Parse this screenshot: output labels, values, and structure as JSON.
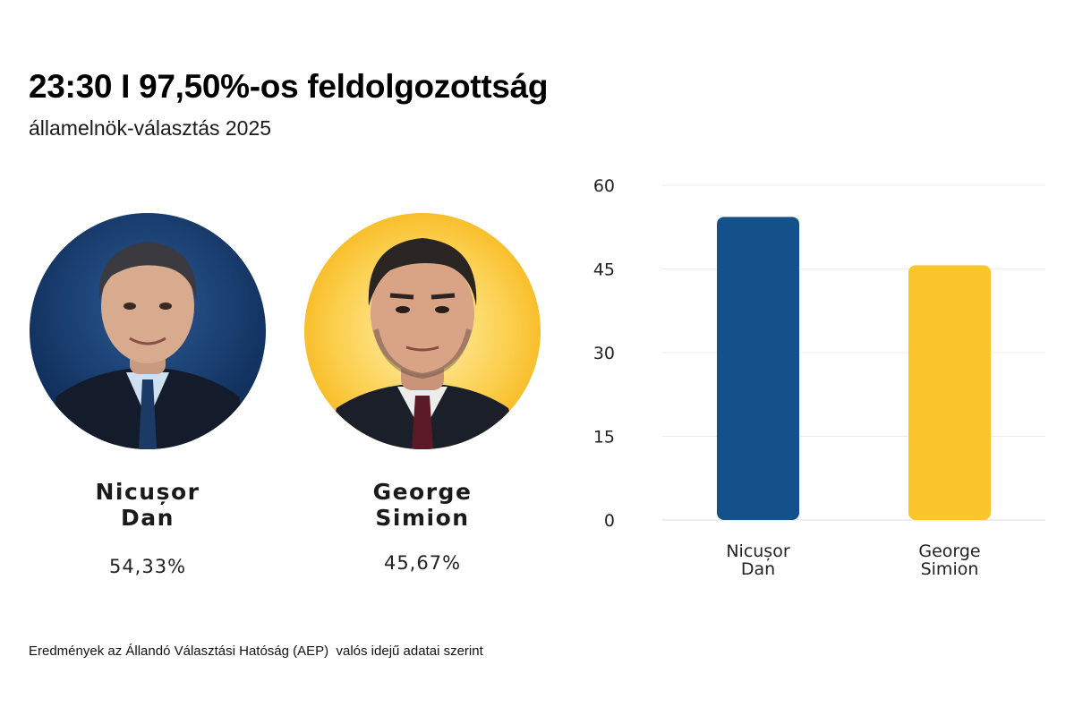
{
  "header": {
    "title": "23:30 I 97,50%-os feldolgozottság",
    "subtitle": "államelnök-választás 2025"
  },
  "candidates": [
    {
      "name_line1": "Nicușor",
      "name_line2": "Dan",
      "percent": "54,33%",
      "portrait_bg": "#123a6a",
      "suit_color": "#141c2c",
      "shirt_color": "#cfe0f0",
      "tie_color": "#1c3a66"
    },
    {
      "name_line1": "George",
      "name_line2": "Simion",
      "percent": "45,67%",
      "portrait_bg": "#f8b81c",
      "suit_color": "#1b1f2a",
      "shirt_color": "#ececec",
      "tie_color": "#5a1a26"
    }
  ],
  "chart_data": {
    "type": "bar",
    "title": "",
    "xlabel": "",
    "ylabel": "",
    "categories": [
      [
        "Nicușor",
        "Dan"
      ],
      [
        "George",
        "Simion"
      ]
    ],
    "values": [
      54.33,
      45.67
    ],
    "colors": [
      "#14508a",
      "#fbc52c"
    ],
    "ylim": [
      0,
      60
    ],
    "yticks": [
      "0",
      "15",
      "30",
      "45",
      "60"
    ],
    "grid": true,
    "legend": "none"
  },
  "footer": {
    "source": "Eredmények az Állandó Választási Hatóság (AEP)  valós idejű adatai szerint"
  }
}
